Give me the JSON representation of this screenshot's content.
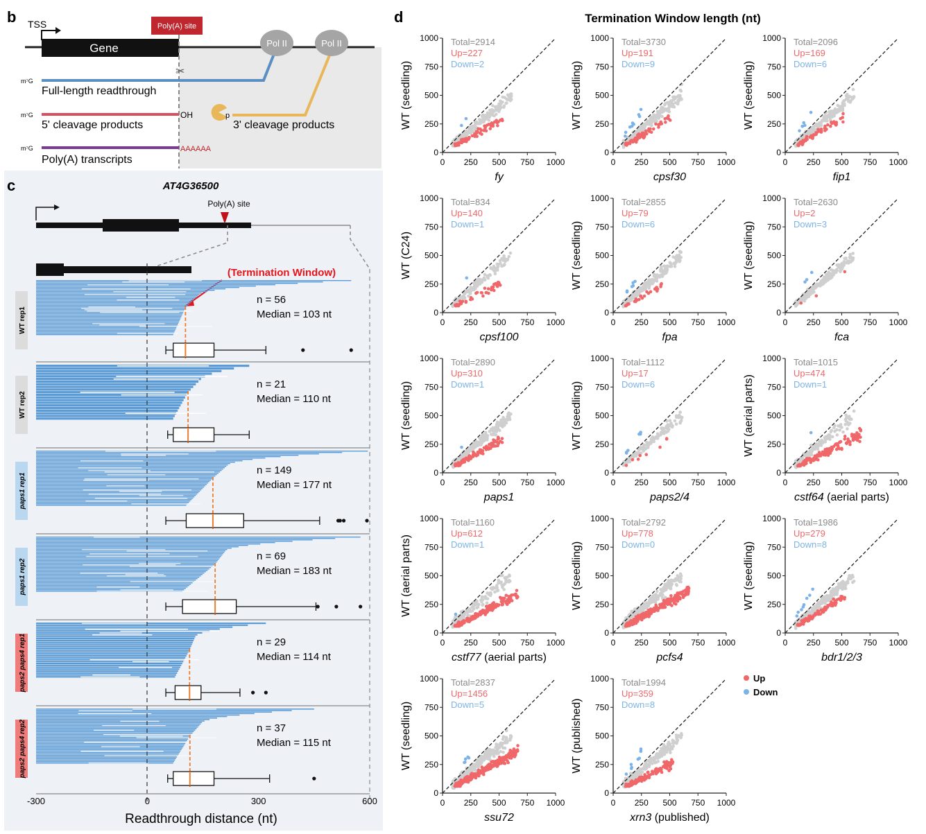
{
  "colors": {
    "gene_black": "#111111",
    "read_blue": "#5b9bd5",
    "up_red": "#f0676a",
    "down_blue": "#7bb3e8",
    "ns_gray": "#cfcfcf",
    "median_orange": "#ed7d31",
    "panel_bg": "#eef1f6",
    "paps1_label_bg": "#b9d7ee",
    "paps24_label_bg": "#f07b7b",
    "wt_label_bg": "#dcdcdc",
    "polya_box": "#c0262d",
    "full_len": "#5b8fc4",
    "cleave5": "#d85060",
    "polyA_line": "#7a3a9a",
    "cleave3": "#e8b75a",
    "pol2": "#a5a5a5"
  },
  "panel_b": {
    "letter": "b",
    "tss": "TSS",
    "gene": "Gene",
    "polya_site": "Poly(A) site",
    "pol2": "Pol II",
    "cap": "m⁷G",
    "full_length": "Full-length readthrough",
    "cleave5": "5' cleavage products",
    "oh": "OH",
    "cleave3": "3' cleavage products",
    "p": "p",
    "polya_tx": "Poly(A) transcripts",
    "polya_tail": "AAAAAA"
  },
  "panel_c": {
    "letter": "c",
    "gene_id": "AT4G36500",
    "polya_site": "Poly(A) site",
    "termination_window": "(Termination Window)",
    "xlabel": "Readthrough distance (nt)",
    "ticks": [
      {
        "value": -300,
        "label": "-300"
      },
      {
        "value": 0,
        "label": "0"
      },
      {
        "value": 300,
        "label": "300"
      },
      {
        "value": 600,
        "label": "600"
      }
    ],
    "samples": [
      {
        "label": "WT rep1",
        "n_label": "n = 56",
        "median_label": "Median =  103 nt",
        "n": 56,
        "median": 103,
        "q1": 70,
        "q3": 180,
        "whisker_low": 50,
        "whisker_high": 320,
        "outliers": [
          420,
          550
        ],
        "max_read": 550
      },
      {
        "label": "WT rep2",
        "n_label": "n = 21",
        "median_label": "Median =  110 nt",
        "n": 21,
        "median": 110,
        "q1": 70,
        "q3": 180,
        "whisker_low": 55,
        "whisker_high": 275,
        "outliers": [],
        "max_read": 275
      },
      {
        "label": "paps1 rep1",
        "n_label": "n = 149",
        "median_label": "Median = 177 nt",
        "n": 149,
        "median": 177,
        "q1": 105,
        "q3": 260,
        "whisker_low": 50,
        "whisker_high": 465,
        "outliers": [
          515,
          520,
          530,
          595
        ],
        "max_read": 595
      },
      {
        "label": "paps1 rep2",
        "n_label": "n = 69",
        "median_label": "Median = 183 nt",
        "n": 69,
        "median": 183,
        "q1": 95,
        "q3": 240,
        "whisker_low": 50,
        "whisker_high": 455,
        "outliers": [
          460,
          510,
          575
        ],
        "max_read": 575
      },
      {
        "label": "paps2 paps4 rep1",
        "n_label": "n = 29",
        "median_label": "Median =  114 nt",
        "n": 29,
        "median": 114,
        "q1": 75,
        "q3": 145,
        "whisker_low": 50,
        "whisker_high": 250,
        "outliers": [
          285,
          320
        ],
        "max_read": 320
      },
      {
        "label": "paps2 paps4 rep2",
        "n_label": "n = 37",
        "median_label": "Median =  115 nt",
        "n": 37,
        "median": 115,
        "q1": 70,
        "q3": 180,
        "whisker_low": 55,
        "whisker_high": 330,
        "outliers": [
          450
        ],
        "max_read": 450
      }
    ]
  },
  "panel_d": {
    "letter": "d",
    "title": "Termination Window length (nt)",
    "legend": {
      "up": "Up",
      "down": "Down"
    },
    "axis_ticks": [
      "0",
      "250",
      "500",
      "750",
      "1000"
    ]
  },
  "chart_data": [
    {
      "type": "scatter",
      "title": "Termination Window length (nt)",
      "xlim": [
        0,
        1000
      ],
      "ylim": [
        0,
        1000
      ],
      "panels": [
        {
          "ylabel": "WT (seedling)",
          "xlabel": "fy",
          "xlabel_suffix": "",
          "total": "Total=2914",
          "up": "Up=227",
          "down": "Down=2",
          "n_total": 2914,
          "n_up": 227,
          "n_down": 2,
          "up_scale": 0.55,
          "spread": 120
        },
        {
          "ylabel": "WT (seedling)",
          "xlabel": "cpsf30",
          "xlabel_suffix": "",
          "total": "Total=3730",
          "up": "Up=191",
          "down": "Down=9",
          "n_total": 3730,
          "n_up": 191,
          "n_down": 9,
          "up_scale": 0.6,
          "spread": 120
        },
        {
          "ylabel": "WT (seedling)",
          "xlabel": "fip1",
          "xlabel_suffix": "",
          "total": "Total=2096",
          "up": "Up=169",
          "down": "Down=6",
          "n_total": 2096,
          "n_up": 169,
          "n_down": 6,
          "up_scale": 0.6,
          "spread": 100
        },
        {
          "ylabel": "WT (C24)",
          "xlabel": "cpsf100",
          "xlabel_suffix": "",
          "total": "Total=834",
          "up": "Up=140",
          "down": "Down=1",
          "n_total": 834,
          "n_up": 140,
          "n_down": 1,
          "up_scale": 0.5,
          "spread": 120
        },
        {
          "ylabel": "WT (seedling)",
          "xlabel": "fpa",
          "xlabel_suffix": "",
          "total": "Total=2855",
          "up": "Up=79",
          "down": "Down=6",
          "n_total": 2855,
          "n_up": 79,
          "n_down": 6,
          "up_scale": 0.55,
          "spread": 100
        },
        {
          "ylabel": "WT (seedling)",
          "xlabel": "fca",
          "xlabel_suffix": "",
          "total": "Total=2630",
          "up": "Up=2",
          "down": "Down=3",
          "n_total": 2630,
          "n_up": 2,
          "n_down": 3,
          "up_scale": 0.6,
          "spread": 90
        },
        {
          "ylabel": "WT (seedling)",
          "xlabel": "paps1",
          "xlabel_suffix": "",
          "total": "Total=2890",
          "up": "Up=310",
          "down": "Down=1",
          "n_total": 2890,
          "n_up": 310,
          "n_down": 1,
          "up_scale": 0.55,
          "spread": 110
        },
        {
          "ylabel": "WT (seedling)",
          "xlabel": "paps2/4",
          "xlabel_suffix": "",
          "total": "Total=1112",
          "up": "Up=17",
          "down": "Down=6",
          "n_total": 1112,
          "n_up": 17,
          "n_down": 6,
          "up_scale": 0.6,
          "spread": 90
        },
        {
          "ylabel": "WT (aerial parts)",
          "xlabel": "cstf64",
          "xlabel_suffix": " (aerial parts)",
          "total": "Total=1015",
          "up": "Up=474",
          "down": "Down=1",
          "n_total": 1015,
          "n_up": 474,
          "n_down": 1,
          "up_scale": 0.5,
          "spread": 150
        },
        {
          "ylabel": "WT (aerial parts)",
          "xlabel": "cstf77",
          "xlabel_suffix": " (aerial parts)",
          "total": "Total=1160",
          "up": "Up=612",
          "down": "Down=1",
          "n_total": 1160,
          "n_up": 612,
          "n_down": 1,
          "up_scale": 0.5,
          "spread": 160
        },
        {
          "ylabel": "WT (seedling)",
          "xlabel": "pcfs4",
          "xlabel_suffix": "",
          "total": "Total=2792",
          "up": "Up=778",
          "down": "Down=0",
          "n_total": 2792,
          "n_up": 778,
          "n_down": 0,
          "up_scale": 0.55,
          "spread": 160
        },
        {
          "ylabel": "WT (seedling)",
          "xlabel": "bdr1/2/3",
          "xlabel_suffix": "",
          "total": "Total=1986",
          "up": "Up=279",
          "down": "Down=8",
          "n_total": 1986,
          "n_up": 279,
          "n_down": 8,
          "up_scale": 0.6,
          "spread": 100
        },
        {
          "ylabel": "WT (seedling)",
          "xlabel": "ssu72",
          "xlabel_suffix": "",
          "total": "Total=2837",
          "up": "Up=1456",
          "down": "Down=5",
          "n_total": 2837,
          "n_up": 1456,
          "n_down": 5,
          "up_scale": 0.55,
          "spread": 160
        },
        {
          "ylabel": "WT (published)",
          "xlabel": "xrn3",
          "xlabel_suffix": " (published)",
          "total": "Total=1994",
          "up": "Up=359",
          "down": "Down=8",
          "n_total": 1994,
          "n_up": 359,
          "n_down": 8,
          "up_scale": 0.5,
          "spread": 130
        }
      ]
    },
    {
      "type": "bar",
      "title": "AT4G36500 readthrough distance",
      "xlabel": "Readthrough distance (nt)",
      "xlim": [
        -300,
        600
      ],
      "categories": [
        "WT rep1",
        "WT rep2",
        "paps1 rep1",
        "paps1 rep2",
        "paps2 paps4 rep1",
        "paps2 paps4 rep2"
      ],
      "values": [
        103,
        110,
        177,
        183,
        114,
        115
      ],
      "counts": [
        56,
        21,
        149,
        69,
        29,
        37
      ]
    }
  ]
}
